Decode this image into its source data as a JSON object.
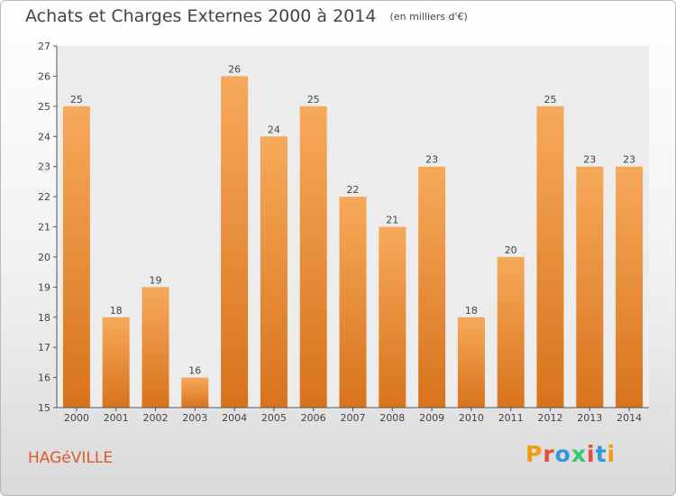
{
  "header": {
    "title": "Achats et Charges Externes 2000 à 2014",
    "unit": "(en milliers d'€)"
  },
  "footer": {
    "commune": "HAGéVILLE",
    "logo": "Proxiti",
    "logo_colors": [
      "#f39c12",
      "#e74c3c",
      "#3498db",
      "#2ecc71",
      "#e74c3c",
      "#3498db",
      "#f39c12"
    ]
  },
  "chart_data": {
    "type": "bar",
    "title": "Achats et Charges Externes 2000 à 2014",
    "subtitle": "(en milliers d'€)",
    "categories": [
      "2000",
      "2001",
      "2002",
      "2003",
      "2004",
      "2005",
      "2006",
      "2007",
      "2008",
      "2009",
      "2010",
      "2011",
      "2012",
      "2013",
      "2014"
    ],
    "values": [
      25,
      18,
      19,
      16,
      26,
      24,
      25,
      22,
      21,
      23,
      18,
      20,
      25,
      23,
      23
    ],
    "ylim": [
      15,
      27
    ],
    "yticks": [
      15,
      16,
      17,
      18,
      19,
      20,
      21,
      22,
      23,
      24,
      25,
      26,
      27
    ],
    "grid": false,
    "bar_color_top": "#f6a95a",
    "bar_color_bottom": "#d8731c"
  }
}
